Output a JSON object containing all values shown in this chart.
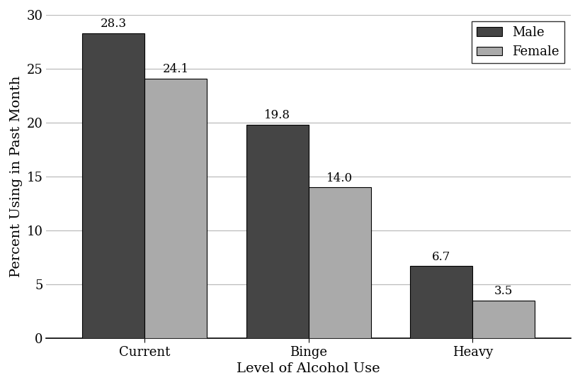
{
  "categories": [
    "Current",
    "Binge",
    "Heavy"
  ],
  "male_values": [
    28.3,
    19.8,
    6.7
  ],
  "female_values": [
    24.1,
    14.0,
    3.5
  ],
  "male_color": "#454545",
  "female_color": "#aaaaaa",
  "bar_edge_color": "#000000",
  "bar_edge_width": 0.8,
  "ylabel": "Percent Using in Past Month",
  "xlabel": "Level of Alcohol Use",
  "ylim": [
    0,
    30
  ],
  "yticks": [
    0,
    5,
    10,
    15,
    20,
    25,
    30
  ],
  "legend_labels": [
    "Male",
    "Female"
  ],
  "bar_width": 0.38,
  "label_fontsize": 13,
  "tick_fontsize": 13,
  "axis_label_fontsize": 14,
  "annotation_fontsize": 12,
  "background_color": "#ffffff",
  "grid_color": "#bbbbbb",
  "grid_linewidth": 0.9
}
